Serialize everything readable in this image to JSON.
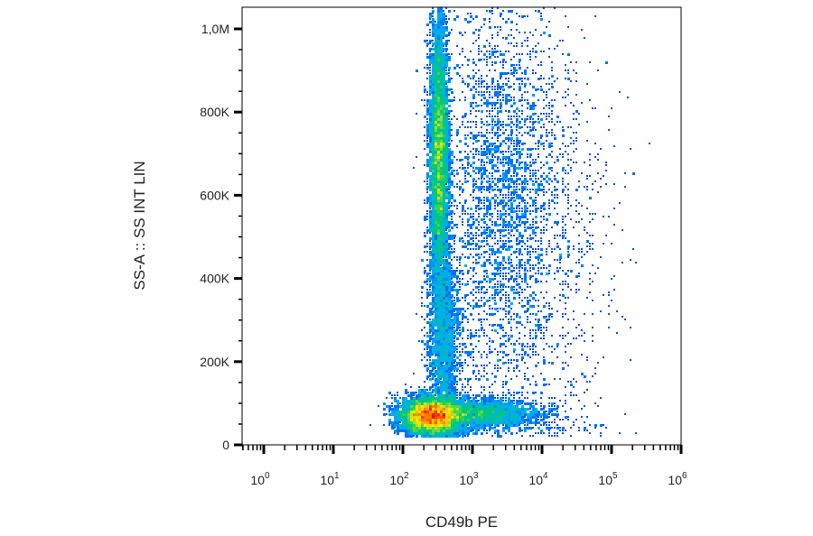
{
  "chart_data": {
    "type": "scatter",
    "title": "",
    "xlabel": "CD49b PE",
    "ylabel": "SS-A :: SS INT LIN",
    "x_scale": "log",
    "y_scale": "linear",
    "xlim": [
      1,
      1000000
    ],
    "ylim": [
      0,
      1050000
    ],
    "x_ticks": [
      {
        "base": "10",
        "exp": "0",
        "value": 1
      },
      {
        "base": "10",
        "exp": "1",
        "value": 10
      },
      {
        "base": "10",
        "exp": "2",
        "value": 100
      },
      {
        "base": "10",
        "exp": "3",
        "value": 1000
      },
      {
        "base": "10",
        "exp": "4",
        "value": 10000
      },
      {
        "base": "10",
        "exp": "5",
        "value": 100000
      },
      {
        "base": "10",
        "exp": "6",
        "value": 1000000
      }
    ],
    "y_ticks": [
      {
        "label": "0",
        "value": 0
      },
      {
        "label": "200K",
        "value": 200000
      },
      {
        "label": "400K",
        "value": 400000
      },
      {
        "label": "600K",
        "value": 600000
      },
      {
        "label": "800K",
        "value": 800000
      },
      {
        "label": "1,0M",
        "value": 1000000
      }
    ],
    "grid": false,
    "legend": "none",
    "color_scale": [
      "#0000cc",
      "#00aaff",
      "#00cc66",
      "#ffee00",
      "#ff6600",
      "#e00000"
    ],
    "populations": [
      {
        "center_x": 250,
        "center_y": 70000,
        "x_spread_decades": 0.22,
        "y_spread": 22000,
        "weight": 0.3,
        "note": "main cluster"
      },
      {
        "center_x": 1200,
        "center_y": 75000,
        "x_spread_decades": 0.45,
        "y_spread": 18000,
        "weight": 0.12
      },
      {
        "center_x": 330,
        "center_y": 700000,
        "x_spread_decades": 0.07,
        "y_spread": 170000,
        "weight": 0.3
      },
      {
        "center_x": 380,
        "center_y": 250000,
        "x_spread_decades": 0.12,
        "y_spread": 120000,
        "weight": 0.1
      },
      {
        "center_x": 2500,
        "center_y": 600000,
        "x_spread_decades": 0.4,
        "y_spread": 250000,
        "weight": 0.14
      },
      {
        "center_x": 15000,
        "center_y": 500000,
        "x_spread_decades": 0.45,
        "y_spread": 300000,
        "weight": 0.04
      }
    ]
  }
}
